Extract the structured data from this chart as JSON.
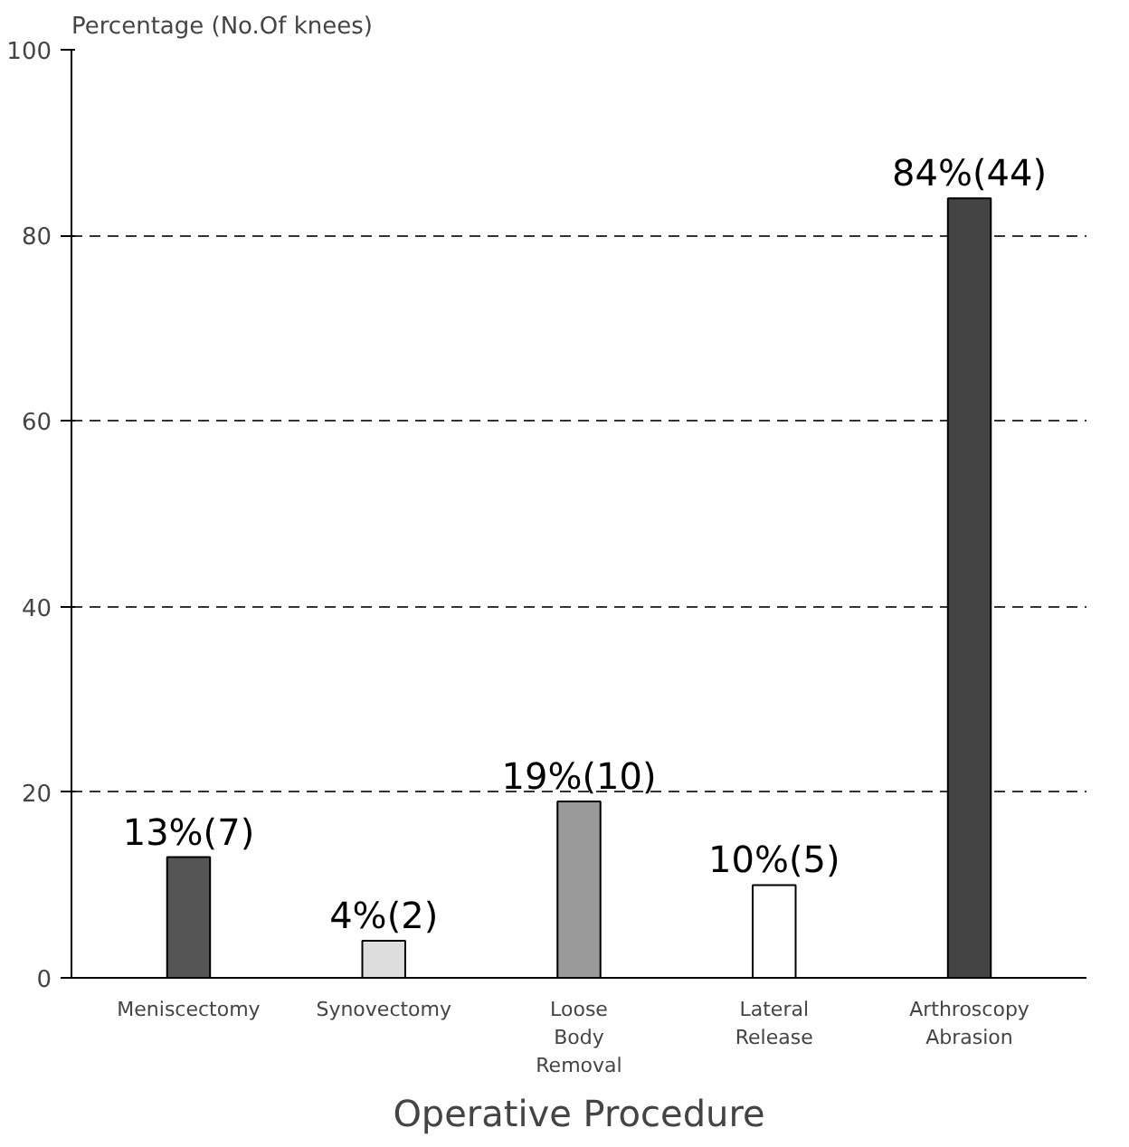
{
  "chart_data": {
    "type": "bar",
    "xlabel": "Operative Procedure",
    "ylabel": "Percentage (No.Of knees)",
    "categories": [
      "Meniscectomy",
      "Synovectomy",
      "Loose Body Removal",
      "Lateral Release",
      "Arthroscopy Abrasion"
    ],
    "values": [
      13,
      4,
      19,
      10,
      84
    ],
    "colors": [
      "#555555",
      "#dddddd",
      "#999999",
      "#ffffff",
      "#444444"
    ],
    "value_labels": [
      "13%(7)",
      "4%(2)",
      "19%(10)",
      "10%(5)",
      "84%(44)"
    ],
    "ylim": [
      0,
      100
    ],
    "yticks": [
      0,
      20,
      40,
      60,
      80,
      100
    ],
    "grid": "y",
    "line_style": "dashed"
  }
}
